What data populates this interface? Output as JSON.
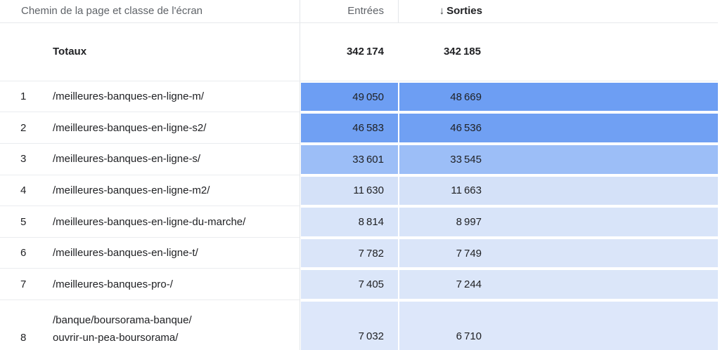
{
  "header": {
    "dimension_label": "Chemin de la page et classe de l'écran",
    "entries_label": "Entrées",
    "exits_label": "Sorties",
    "sort_arrow": "↓"
  },
  "totals": {
    "label": "Totaux",
    "entries": "342 174",
    "exits": "342 185"
  },
  "rows": [
    {
      "index": "1",
      "path": "/meilleures-banques-en-ligne-m/",
      "entries": "49 050",
      "exits": "48 669",
      "heat_color": "#6D9EF3"
    },
    {
      "index": "2",
      "path": "/meilleures-banques-en-ligne-s2/",
      "entries": "46 583",
      "exits": "46 536",
      "heat_color": "#70A0F3"
    },
    {
      "index": "3",
      "path": "/meilleures-banques-en-ligne-s/",
      "entries": "33 601",
      "exits": "33 545",
      "heat_color": "#9CBEF7"
    },
    {
      "index": "4",
      "path": "/meilleures-banques-en-ligne-m2/",
      "entries": "11 630",
      "exits": "11 663",
      "heat_color": "#D4E1F8"
    },
    {
      "index": "5",
      "path": "/meilleures-banques-en-ligne-du-marche/",
      "entries": "8 814",
      "exits": "8 997",
      "heat_color": "#D8E4F9"
    },
    {
      "index": "6",
      "path": "/meilleures-banques-en-ligne-t/",
      "entries": "7 782",
      "exits": "7 749",
      "heat_color": "#DAE5F9"
    },
    {
      "index": "7",
      "path": "/meilleures-banques-pro-/",
      "entries": "7 405",
      "exits": "7 244",
      "heat_color": "#DBE6F9"
    },
    {
      "index": "8",
      "path": "/banque/boursorama-banque/\nouvrir-un-pea-boursorama/",
      "entries": "7 032",
      "exits": "6 710",
      "heat_color": "#DDE7FA"
    }
  ],
  "colors": {
    "heat_base": "#4285F4",
    "header_text": "#5F6368",
    "text": "#202124",
    "grid_line": "#E9EBEE"
  }
}
